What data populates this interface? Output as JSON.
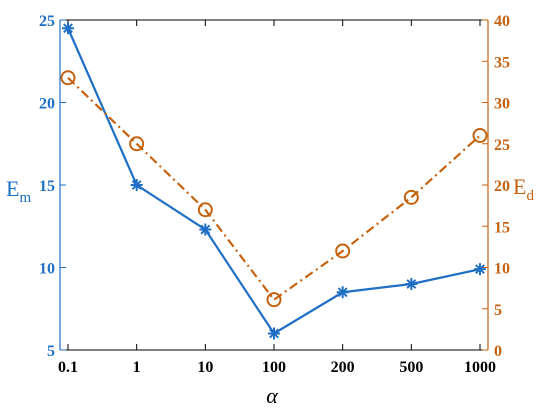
{
  "chart_data": {
    "type": "line",
    "x_categories": [
      "0.1",
      "1",
      "10",
      "100",
      "200",
      "500",
      "1000"
    ],
    "xlabel": "α",
    "left_axis": {
      "label_main": "E",
      "label_sub": "m",
      "ylim": [
        5,
        25
      ],
      "ticks": [
        5,
        10,
        15,
        20,
        25
      ],
      "color": "#1f6fc5"
    },
    "right_axis": {
      "label_main": "E",
      "label_sub": "d",
      "ylim": [
        0,
        40
      ],
      "ticks": [
        0,
        5,
        10,
        15,
        20,
        25,
        30,
        35,
        40
      ],
      "color": "#c5620f"
    },
    "series": [
      {
        "axis": "left",
        "marker": "asterisk",
        "line_style": "solid",
        "color": "#1f6fc5",
        "values": [
          24.5,
          15.0,
          12.3,
          6.0,
          8.5,
          9.0,
          9.9
        ]
      },
      {
        "axis": "right",
        "marker": "circle",
        "line_style": "dash-dot",
        "color": "#c5620f",
        "values": [
          33.0,
          25.0,
          17.0,
          6.1,
          12.0,
          18.5,
          26.0
        ]
      }
    ],
    "grid": false,
    "legend": "none"
  }
}
